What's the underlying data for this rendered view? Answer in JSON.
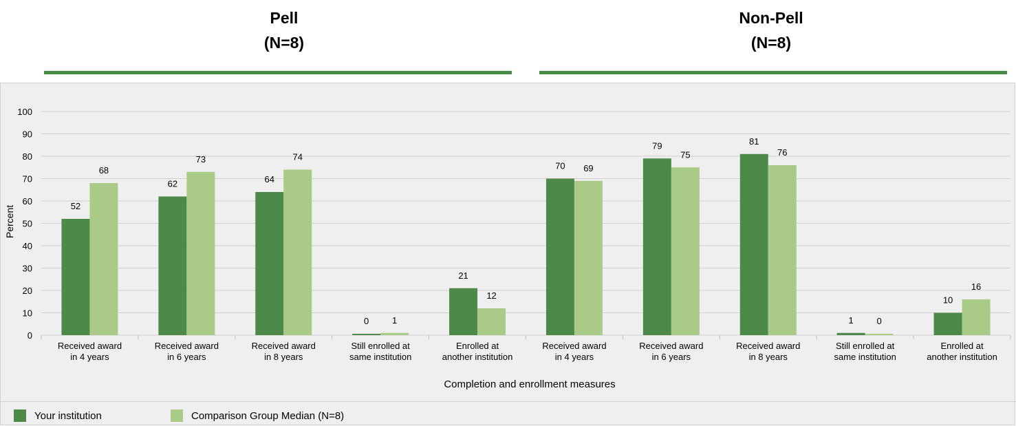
{
  "groups": [
    {
      "title": "Pell",
      "subtitle": "(N=8)"
    },
    {
      "title": "Non-Pell",
      "subtitle": "(N=8)"
    }
  ],
  "colors": {
    "your_institution": "#4d8a4a",
    "comparison": "#a9cb87",
    "rule": "#4a8a47"
  },
  "chart_data": {
    "type": "bar",
    "categories": [
      [
        "Received award",
        "in 4 years"
      ],
      [
        "Received award",
        "in 6 years"
      ],
      [
        "Received award",
        "in 8 years"
      ],
      [
        "Still enrolled at",
        "same institution"
      ],
      [
        "Enrolled at",
        "another institution"
      ],
      [
        "Received award",
        "in 4 years"
      ],
      [
        "Received award",
        "in 6 years"
      ],
      [
        "Received award",
        "in 8 years"
      ],
      [
        "Still enrolled at",
        "same institution"
      ],
      [
        "Enrolled at",
        "another institution"
      ]
    ],
    "series": [
      {
        "name": "Your institution",
        "values": [
          52,
          62,
          64,
          0,
          21,
          70,
          79,
          81,
          1,
          10
        ]
      },
      {
        "name": "Comparison Group Median (N=8)",
        "values": [
          68,
          73,
          74,
          1,
          12,
          69,
          75,
          76,
          0,
          16
        ]
      }
    ],
    "xlabel": "Completion and enrollment measures",
    "ylabel": "Percent",
    "ylim": [
      0,
      100
    ],
    "yticks": [
      0,
      10,
      20,
      30,
      40,
      50,
      60,
      70,
      80,
      90,
      100
    ],
    "grid": true,
    "legend_position": "bottom-left"
  }
}
